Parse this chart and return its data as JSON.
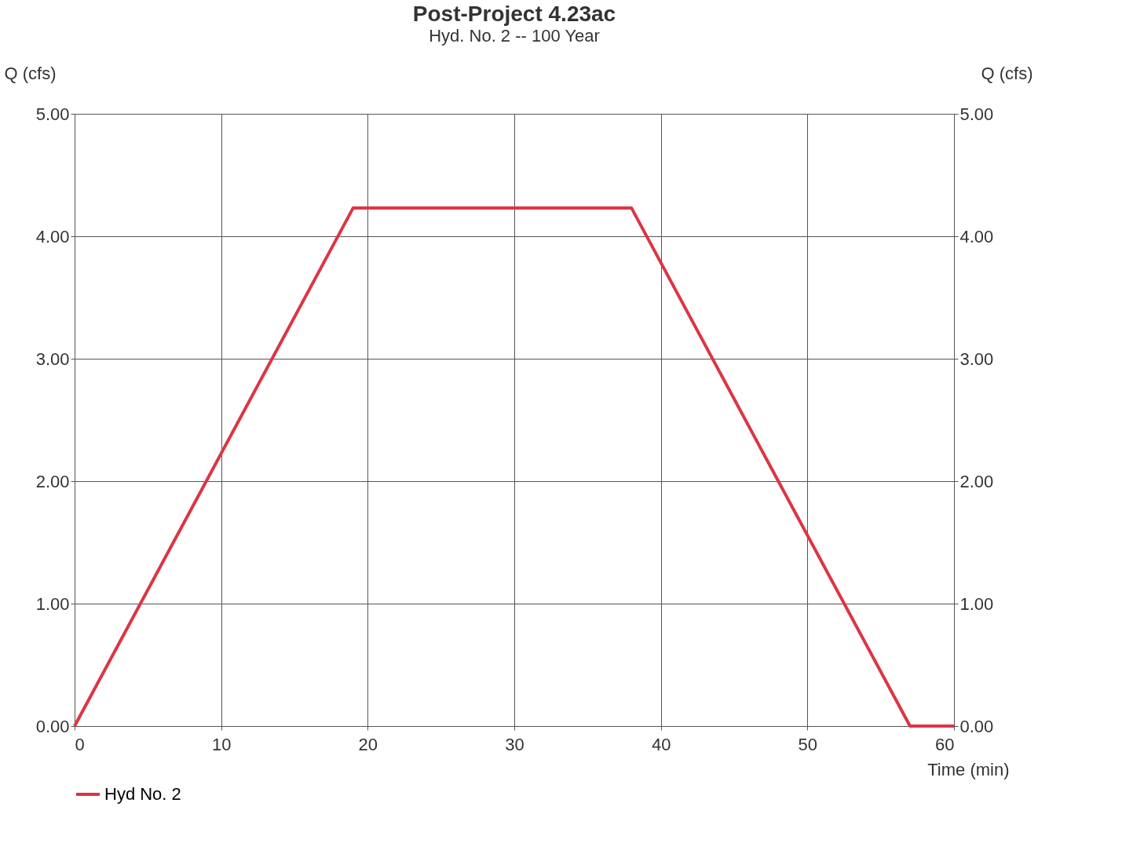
{
  "chart_data": {
    "type": "line",
    "title": "Post-Project 4.23ac",
    "subtitle": "Hyd. No. 2 -- 100 Year",
    "xlabel": "Time (min)",
    "ylabel": "Q (cfs)",
    "y2label": "Q (cfs)",
    "x": [
      0,
      19,
      38,
      57,
      60
    ],
    "series": [
      {
        "name": "Hyd No. 2",
        "color": "#dc3545",
        "values": [
          0,
          4.23,
          4.23,
          0,
          0
        ]
      }
    ],
    "xlim": [
      0,
      60
    ],
    "xticks": [
      0,
      10,
      20,
      30,
      40,
      50,
      60
    ],
    "ylim": [
      0,
      5
    ],
    "yticks": [
      {
        "value": 0,
        "label": "0.00"
      },
      {
        "value": 1,
        "label": "1.00"
      },
      {
        "value": 2,
        "label": "2.00"
      },
      {
        "value": 3,
        "label": "3.00"
      },
      {
        "value": 4,
        "label": "4.00"
      },
      {
        "value": 5,
        "label": "5.00"
      }
    ],
    "y2lim": [
      0,
      5
    ],
    "y2ticks": [
      {
        "value": 0,
        "label": "0.00"
      },
      {
        "value": 1,
        "label": "1.00"
      },
      {
        "value": 2,
        "label": "2.00"
      },
      {
        "value": 3,
        "label": "3.00"
      },
      {
        "value": 4,
        "label": "4.00"
      },
      {
        "value": 5,
        "label": "5.00"
      }
    ],
    "grid": true,
    "legend": "bottom left",
    "marker": "none",
    "line_style": "solid"
  }
}
